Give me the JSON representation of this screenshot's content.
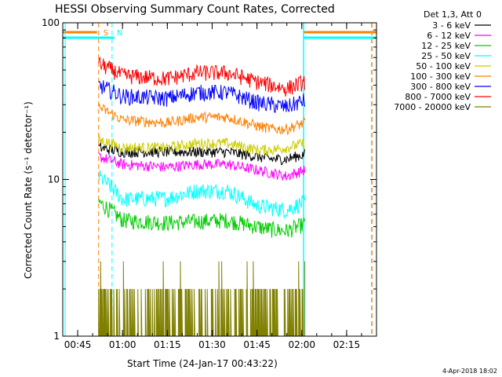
{
  "window": {
    "title": "HESSI Observing Summary Count Rates, Corrected",
    "date_stamp": "4-Apr-2018 18:02"
  },
  "chart_data": {
    "type": "line",
    "title": "HESSI Observing Summary Count Rates, Corrected",
    "xlabel": "Start Time (24-Jan-17 00:43:22)",
    "ylabel": "Corrected Count Rate (s⁻¹ detector⁻¹)",
    "yscale": "log",
    "ylim": [
      1,
      100
    ],
    "xlim_minutes": [
      40,
      145
    ],
    "x_ticks": [
      {
        "label": "00:45",
        "minutes": 45
      },
      {
        "label": "01:00",
        "minutes": 60
      },
      {
        "label": "01:15",
        "minutes": 75
      },
      {
        "label": "01:30",
        "minutes": 90
      },
      {
        "label": "01:45",
        "minutes": 105
      },
      {
        "label": "02:00",
        "minutes": 120
      },
      {
        "label": "02:15",
        "minutes": 135
      }
    ],
    "y_ticks": [
      {
        "label": "1",
        "value": 1
      },
      {
        "label": "10",
        "value": 10
      },
      {
        "label": "100",
        "value": 100
      }
    ],
    "legend_position": "right-top",
    "legend_header": "Det 1,3, Att 0",
    "series": [
      {
        "name": "3 - 6 keV",
        "color": "#000000",
        "x": [
          52,
          60,
          75,
          85,
          95,
          105,
          110,
          115,
          121
        ],
        "values": [
          16,
          15,
          15,
          15,
          15,
          14,
          13.5,
          13.5,
          14.5
        ]
      },
      {
        "name": "6 - 12 keV",
        "color": "#ff00ff",
        "x": [
          52,
          60,
          75,
          85,
          95,
          105,
          110,
          115,
          121
        ],
        "values": [
          14,
          12.5,
          12,
          12.5,
          12.5,
          11.5,
          11,
          10.5,
          11.5
        ]
      },
      {
        "name": "12 - 25 keV",
        "color": "#00cc00",
        "x": [
          52,
          60,
          75,
          85,
          95,
          105,
          110,
          115,
          121
        ],
        "values": [
          7.2,
          5.5,
          5.3,
          5.4,
          5.5,
          5.0,
          4.8,
          4.7,
          5.2
        ]
      },
      {
        "name": "25 - 50 keV",
        "color": "#00ffff",
        "x": [
          52,
          60,
          75,
          85,
          95,
          105,
          110,
          115,
          121
        ],
        "values": [
          10.5,
          7.5,
          7.6,
          8.5,
          8.5,
          6.8,
          6.6,
          6.4,
          7.2
        ]
      },
      {
        "name": "50 - 100 keV",
        "color": "#cccc00",
        "x": [
          52,
          60,
          75,
          85,
          95,
          105,
          110,
          115,
          121
        ],
        "values": [
          18,
          16,
          16,
          17,
          17,
          15.5,
          15.5,
          16,
          17
        ]
      },
      {
        "name": "100 - 300 keV",
        "color": "#ff8000",
        "x": [
          52,
          60,
          75,
          85,
          95,
          105,
          110,
          115,
          121
        ],
        "values": [
          29,
          24,
          23,
          25,
          25,
          22,
          21,
          21,
          23
        ]
      },
      {
        "name": "300 - 800 keV",
        "color": "#0000ff",
        "x": [
          52,
          60,
          75,
          85,
          95,
          105,
          110,
          115,
          121
        ],
        "values": [
          40,
          34,
          33,
          36,
          36,
          31,
          30,
          29,
          32
        ]
      },
      {
        "name": "800 - 7000 keV",
        "color": "#ff0000",
        "x": [
          52,
          60,
          75,
          85,
          95,
          105,
          110,
          115,
          121
        ],
        "values": [
          55,
          46,
          44,
          48,
          48,
          42,
          40,
          38,
          42
        ]
      },
      {
        "name": "7000 - 20000 keV",
        "color": "#808000",
        "x": [
          52,
          60,
          75,
          85,
          95,
          105,
          110,
          115,
          121
        ],
        "values": [
          1.0,
          1.0,
          1.0,
          1.0,
          1.0,
          1.0,
          1.0,
          1.0,
          1.0
        ]
      }
    ],
    "markers": [
      {
        "label": "S",
        "color": "#ff8000",
        "minutes": 52
      },
      {
        "label": "N",
        "color": "#00ffff",
        "minutes": 56.5
      }
    ],
    "night_bars": {
      "color_orange": "#ff8000",
      "color_cyan": "#00ffff"
    },
    "grid": false
  }
}
